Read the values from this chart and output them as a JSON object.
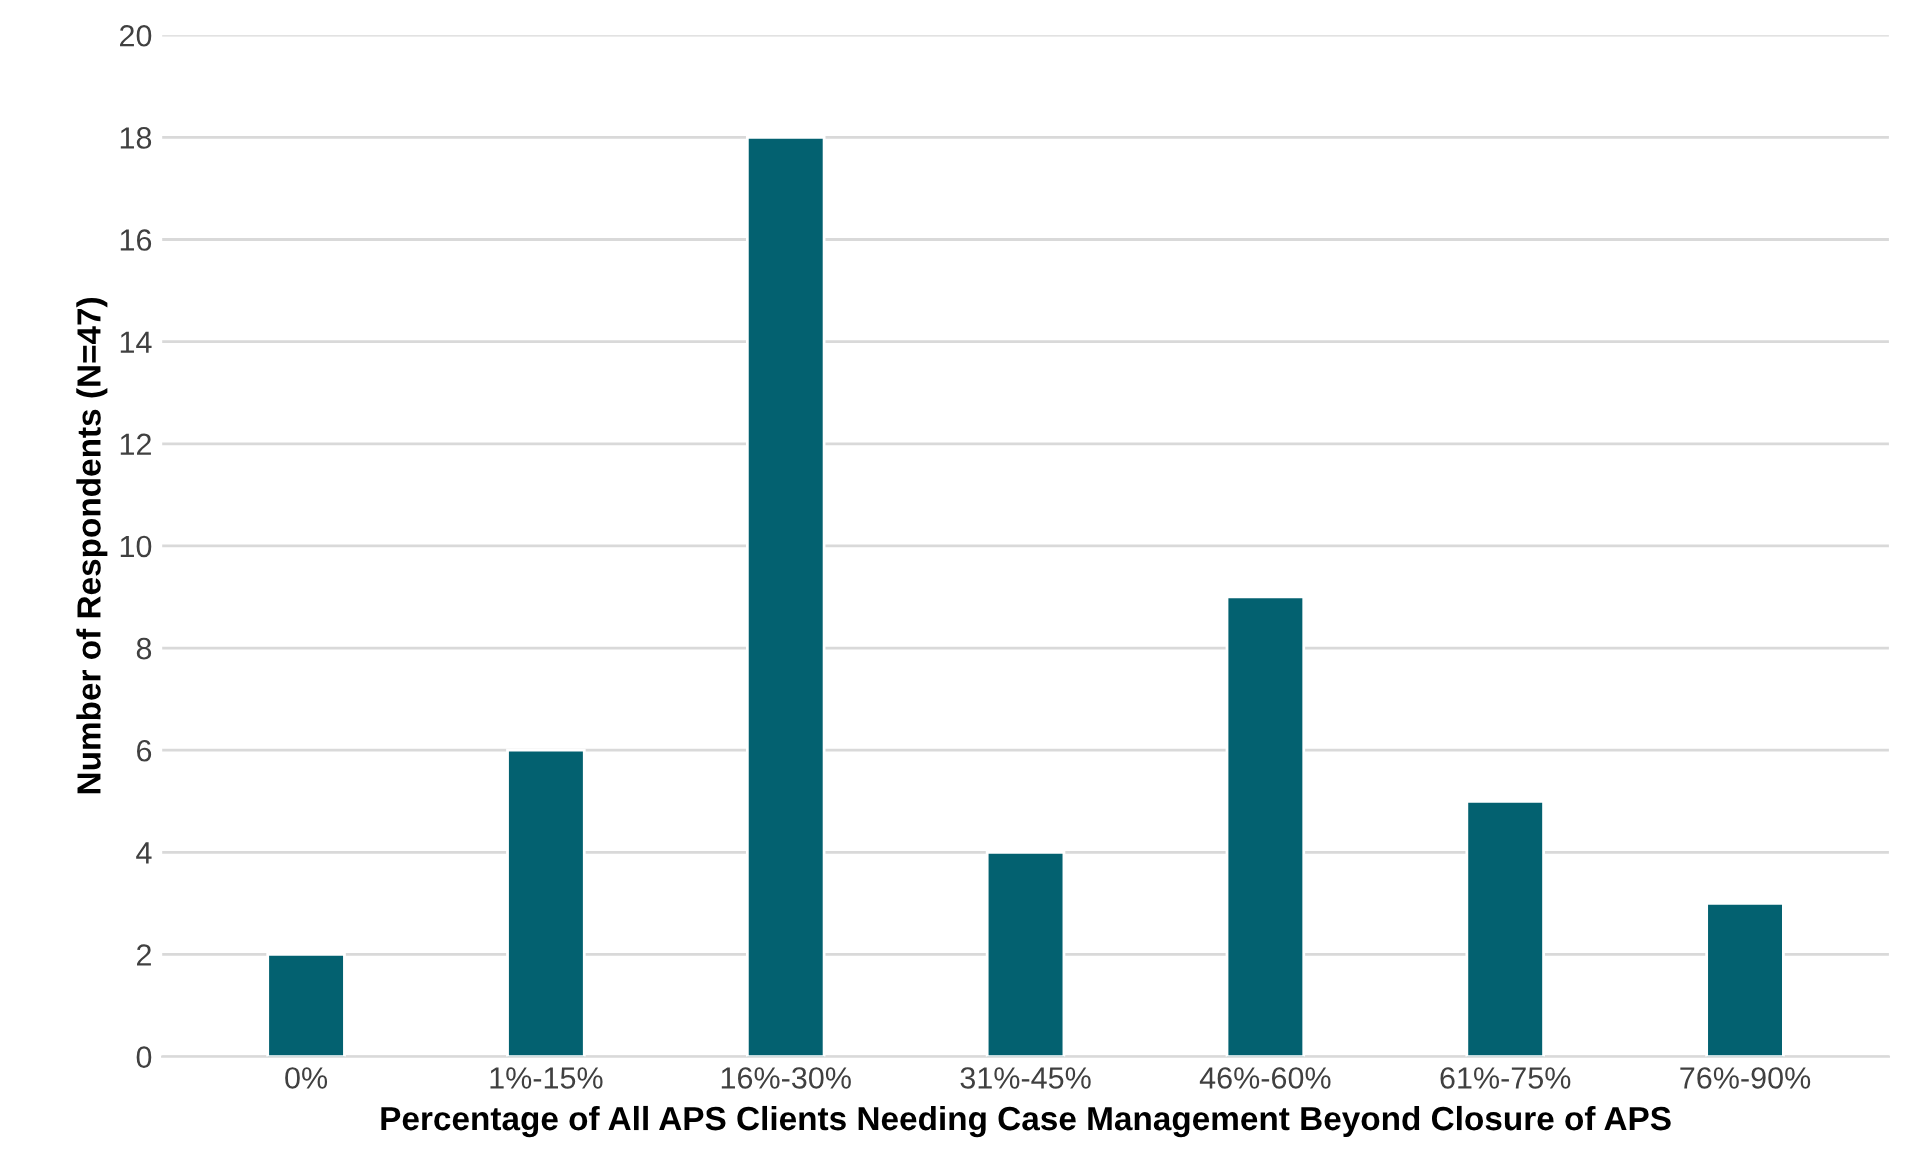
{
  "chart_data": {
    "type": "bar",
    "xlabel": "Percentage of All APS Clients Needing Case Management Beyond Closure of APS",
    "ylabel": "Number of Respondents (N=47)",
    "categories": [
      "0%",
      "1%-15%",
      "16%-30%",
      "31%-45%",
      "46%-60%",
      "61%-75%",
      "76%-90%"
    ],
    "values": [
      2,
      6,
      18,
      4,
      9,
      5,
      3
    ],
    "color": "#036170",
    "ylim": [
      0,
      20
    ],
    "yticks": [
      0,
      2,
      4,
      6,
      8,
      10,
      12,
      14,
      16,
      18,
      20
    ],
    "grid": "y"
  }
}
